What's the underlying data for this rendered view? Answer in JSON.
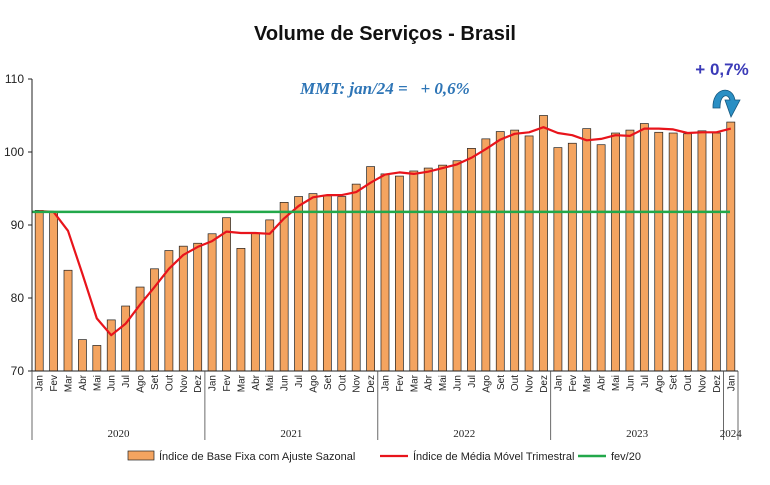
{
  "chart_data": {
    "type": "bar",
    "title": "Volume de Serviços - Brasil",
    "annotation": "MMT: jan/24 =   + 0,6%",
    "callout": "+ 0,7%",
    "ylim": [
      70,
      110
    ],
    "yticks": [
      70,
      80,
      90,
      100,
      110
    ],
    "categories": [
      "Jan",
      "Fev",
      "Mar",
      "Abr",
      "Mai",
      "Jun",
      "Jul",
      "Ago",
      "Set",
      "Out",
      "Nov",
      "Dez",
      "Jan",
      "Fev",
      "Mar",
      "Abr",
      "Mai",
      "Jun",
      "Jul",
      "Ago",
      "Set",
      "Out",
      "Nov",
      "Dez",
      "Jan",
      "Fev",
      "Mar",
      "Abr",
      "Mai",
      "Jun",
      "Jul",
      "Ago",
      "Set",
      "Out",
      "Nov",
      "Dez",
      "Jan",
      "Fev",
      "Mar",
      "Abr",
      "Mai",
      "Jun",
      "Jul",
      "Ago",
      "Set",
      "Out",
      "Nov",
      "Dez",
      "Jan"
    ],
    "years": [
      {
        "label": "2020",
        "start": 0,
        "end": 11
      },
      {
        "label": "2021",
        "start": 12,
        "end": 23
      },
      {
        "label": "2022",
        "start": 24,
        "end": 35
      },
      {
        "label": "2023",
        "start": 36,
        "end": 47
      },
      {
        "label": "2024",
        "start": 48,
        "end": 48
      }
    ],
    "series": [
      {
        "name": "Índice de Base Fixa com Ajuste Sazonal",
        "kind": "bar",
        "color": "#f4a460",
        "values": [
          92.0,
          91.8,
          83.8,
          74.3,
          73.5,
          77.0,
          78.9,
          81.5,
          84.0,
          86.5,
          87.1,
          87.5,
          88.8,
          91.0,
          86.8,
          88.9,
          90.7,
          93.1,
          93.9,
          94.3,
          94.0,
          93.9,
          95.6,
          98.0,
          97.0,
          96.7,
          97.4,
          97.8,
          98.2,
          98.8,
          100.5,
          101.8,
          102.8,
          103.0,
          102.2,
          105.0,
          100.6,
          101.2,
          103.2,
          101.0,
          102.6,
          103.0,
          103.9,
          102.7,
          102.6,
          102.5,
          102.9,
          102.6,
          104.1
        ]
      },
      {
        "name": "Índice de Média Móvel Trimestral",
        "kind": "line",
        "color": "#e8141b",
        "values": [
          91.9,
          91.8,
          89.2,
          83.3,
          77.2,
          74.9,
          76.5,
          79.1,
          81.5,
          84.0,
          85.9,
          87.0,
          87.8,
          89.1,
          88.9,
          88.9,
          88.8,
          90.9,
          92.6,
          93.8,
          94.1,
          94.1,
          94.5,
          95.8,
          96.9,
          97.2,
          97.0,
          97.3,
          97.8,
          98.3,
          99.2,
          100.4,
          101.7,
          102.5,
          102.7,
          103.4,
          102.6,
          102.3,
          101.6,
          101.8,
          102.3,
          102.2,
          103.2,
          103.2,
          103.1,
          102.6,
          102.7,
          102.7,
          103.2
        ]
      },
      {
        "name": "fev/20",
        "kind": "hline",
        "color": "#22a84a",
        "value": 91.8
      }
    ],
    "grid": false,
    "legend_position": "bottom"
  }
}
